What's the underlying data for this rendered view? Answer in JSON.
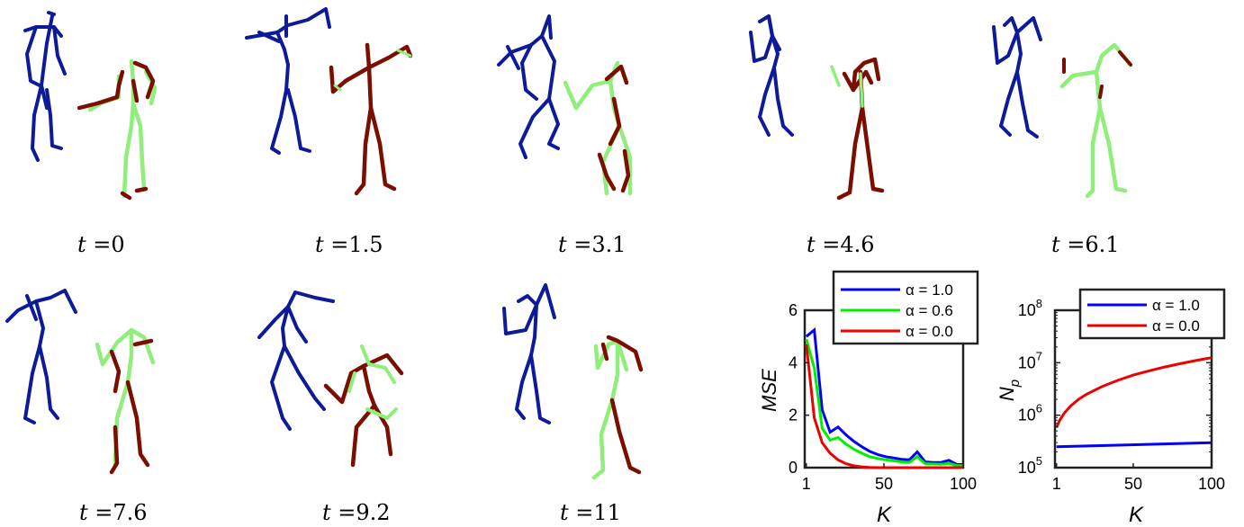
{
  "figure": {
    "captions": [
      {
        "var": "t",
        "eq": "=",
        "value": "0"
      },
      {
        "var": "t",
        "eq": "=",
        "value": "1.5"
      },
      {
        "var": "t",
        "eq": "=",
        "value": "3.1"
      },
      {
        "var": "t",
        "eq": "=",
        "value": "4.6"
      },
      {
        "var": "t",
        "eq": "=",
        "value": "6.1"
      },
      {
        "var": "t",
        "eq": "=",
        "value": "7.6"
      },
      {
        "var": "t",
        "eq": "=",
        "value": "9.2"
      },
      {
        "var": "t",
        "eq": "=",
        "value": "11"
      }
    ],
    "colors": {
      "person_a": "#0d1b99",
      "prediction": "#7a0f00",
      "ground_truth": "#90ee7a"
    }
  },
  "chart_data": [
    {
      "type": "line",
      "xlabel": "K",
      "ylabel": "MSE",
      "xlim": [
        0,
        100
      ],
      "ylim": [
        0,
        6
      ],
      "xticks": [
        "1",
        "50",
        "100"
      ],
      "yticks": [
        "0",
        "2",
        "4",
        "6"
      ],
      "legend_position": "top-right",
      "series": [
        {
          "name": "α = 1.0",
          "color": "#0000ff",
          "x": [
            1,
            6,
            11,
            16,
            21,
            26,
            31,
            36,
            41,
            46,
            51,
            56,
            61,
            66,
            71,
            76,
            81,
            86,
            91,
            96,
            100
          ],
          "y": [
            5.0,
            5.25,
            2.2,
            1.35,
            1.55,
            1.25,
            1.0,
            0.8,
            0.62,
            0.5,
            0.42,
            0.37,
            0.32,
            0.3,
            0.6,
            0.22,
            0.2,
            0.2,
            0.28,
            0.12,
            0.12
          ]
        },
        {
          "name": "α = 0.6",
          "color": "#00ee00",
          "x": [
            1,
            6,
            11,
            16,
            21,
            26,
            31,
            36,
            41,
            46,
            51,
            56,
            61,
            66,
            71,
            76,
            81,
            86,
            91,
            96,
            100
          ],
          "y": [
            4.9,
            3.8,
            1.5,
            1.05,
            1.15,
            0.9,
            0.7,
            0.55,
            0.42,
            0.35,
            0.3,
            0.26,
            0.22,
            0.2,
            0.42,
            0.15,
            0.14,
            0.13,
            0.16,
            0.08,
            0.08
          ]
        },
        {
          "name": "α = 0.0",
          "color": "#ee0000",
          "x": [
            1,
            6,
            11,
            16,
            21,
            26,
            31,
            36,
            41,
            46,
            51,
            56,
            61,
            66,
            71,
            76,
            81,
            86,
            91,
            96,
            100
          ],
          "y": [
            4.7,
            1.9,
            0.95,
            0.55,
            0.3,
            0.15,
            0.07,
            0.03,
            0.01,
            0.0,
            0.0,
            0.0,
            0.0,
            0.0,
            0.0,
            0.0,
            0.0,
            0.0,
            0.0,
            0.0,
            0.0
          ]
        }
      ]
    },
    {
      "type": "line",
      "xlabel": "K",
      "ylabel": "N_p",
      "scale_y": "log",
      "xlim": [
        0,
        100
      ],
      "ylim": [
        100000,
        100000000
      ],
      "xticks": [
        "1",
        "50",
        "100"
      ],
      "yticks": [
        "10^5",
        "10^6",
        "10^7",
        "10^8"
      ],
      "legend_position": "top-right",
      "series": [
        {
          "name": "α = 1.0",
          "color": "#0000ff",
          "x": [
            1,
            100
          ],
          "y": [
            250000,
            300000
          ]
        },
        {
          "name": "α = 0.0",
          "color": "#ee0000",
          "x": [
            1,
            3,
            6,
            10,
            15,
            20,
            30,
            40,
            50,
            60,
            70,
            80,
            90,
            100
          ],
          "y": [
            580000,
            800000,
            1100000,
            1500000,
            2000000,
            2500000,
            3500000,
            4600000,
            5800000,
            7000000,
            8300000,
            9600000,
            11000000,
            12500000
          ]
        }
      ]
    }
  ]
}
